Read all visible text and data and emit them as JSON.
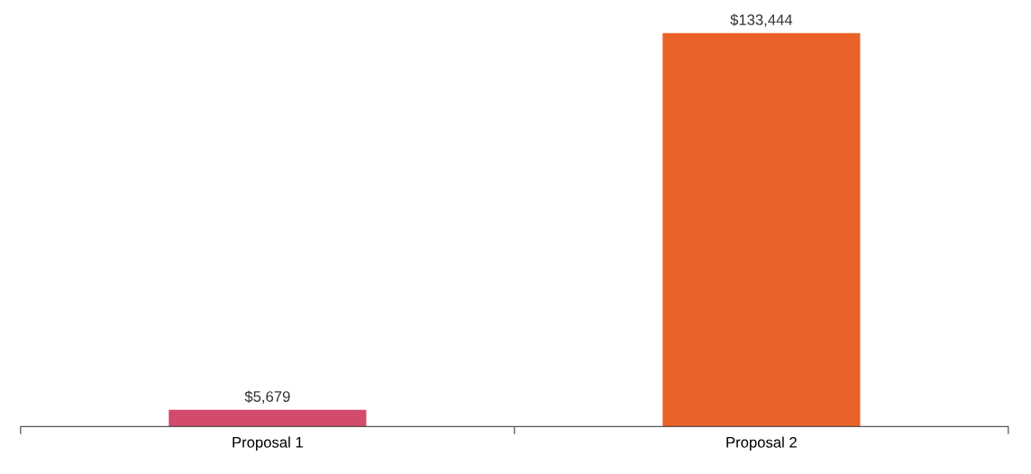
{
  "chart_data": {
    "type": "bar",
    "categories": [
      "Proposal 1",
      "Proposal 2"
    ],
    "values": [
      5679,
      133444
    ],
    "colors": [
      "#d24a6c",
      "#ea6128"
    ],
    "value_labels": [
      "$5,679",
      "$133,444"
    ]
  }
}
